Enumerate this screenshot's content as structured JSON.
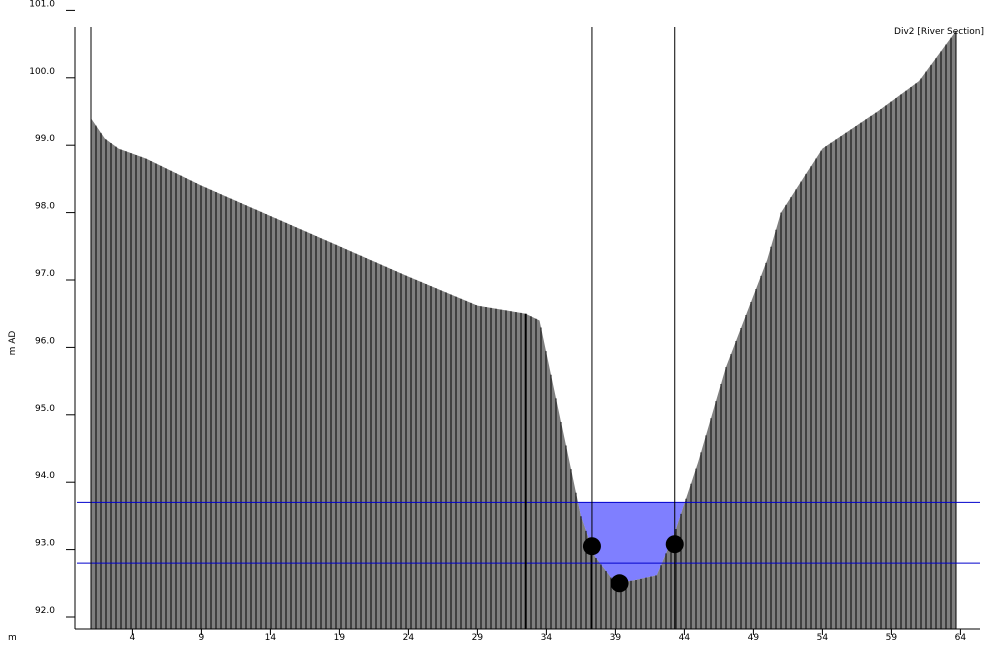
{
  "chart_data": {
    "type": "area",
    "title": "",
    "section_label": "Div2 [River Section]",
    "ylabel": "m AD",
    "xlabel": "m",
    "xlim": [
      0,
      64
    ],
    "ylim": [
      92.0,
      101.0
    ],
    "x_ticks": [
      4,
      9,
      14,
      19,
      24,
      29,
      34,
      39,
      44,
      49,
      54,
      59,
      64
    ],
    "y_ticks": [
      92.0,
      93.0,
      94.0,
      95.0,
      96.0,
      97.0,
      98.0,
      99.0,
      100.0,
      101.0
    ],
    "y_tick_labels": [
      "92.0",
      "93.0",
      "94.0",
      "95.0",
      "96.0",
      "97.0",
      "98.0",
      "99.0",
      "100.0",
      "101.0"
    ],
    "x_tick_labels": [
      "4",
      "9",
      "14",
      "19",
      "24",
      "29",
      "34",
      "39",
      "44",
      "49",
      "54",
      "59",
      "64"
    ],
    "grid": false,
    "ground_profile": {
      "x": [
        1,
        2,
        3,
        5,
        9,
        14,
        19,
        24,
        29,
        32.5,
        33.5,
        36.5,
        37.5,
        39,
        40.5,
        42,
        43.3,
        45,
        47,
        50,
        51,
        54,
        58,
        61,
        63.7
      ],
      "y": [
        99.4,
        99.1,
        98.95,
        98.8,
        98.4,
        97.95,
        97.5,
        97.05,
        96.62,
        96.5,
        96.4,
        93.5,
        92.9,
        92.5,
        92.55,
        92.62,
        93.25,
        94.3,
        95.7,
        97.3,
        98.0,
        98.95,
        99.5,
        99.95,
        100.7
      ]
    },
    "water_surface_level": 93.7,
    "lower_level_line": 92.8,
    "vertical_markers_x": [
      1,
      32.5,
      37.3,
      43.3
    ],
    "points": [
      {
        "x": 37.3,
        "y": 93.05
      },
      {
        "x": 39.3,
        "y": 92.5
      },
      {
        "x": 43.3,
        "y": 93.08
      }
    ],
    "colors": {
      "ground_fill": "#7f7f7f",
      "hatch": "#000000",
      "water": "#7f7fff",
      "level_line": "#0000cc",
      "marker": "#000000",
      "point": "#000000"
    }
  }
}
